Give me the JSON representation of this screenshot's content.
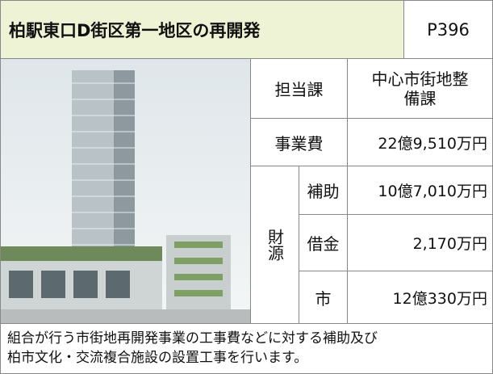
{
  "header": {
    "title": "柏駅東口D街区第一地区の再開発",
    "page": "P396"
  },
  "table": {
    "rows": [
      [
        "担当課",
        "中心市街地整備課"
      ],
      [
        "事業費",
        "22億9,510万円"
      ]
    ],
    "funding": {
      "label": "財源",
      "rows": [
        [
          "補助",
          "10億7,010万円"
        ],
        [
          "借金",
          "2,170万円"
        ],
        [
          "市",
          "12億330万円"
        ]
      ]
    }
  },
  "description": [
    "組合が行う市街地再開発事業の工事費などに対する補助及び",
    "柏市文化・交流複合施設の設置工事を行います。"
  ]
}
